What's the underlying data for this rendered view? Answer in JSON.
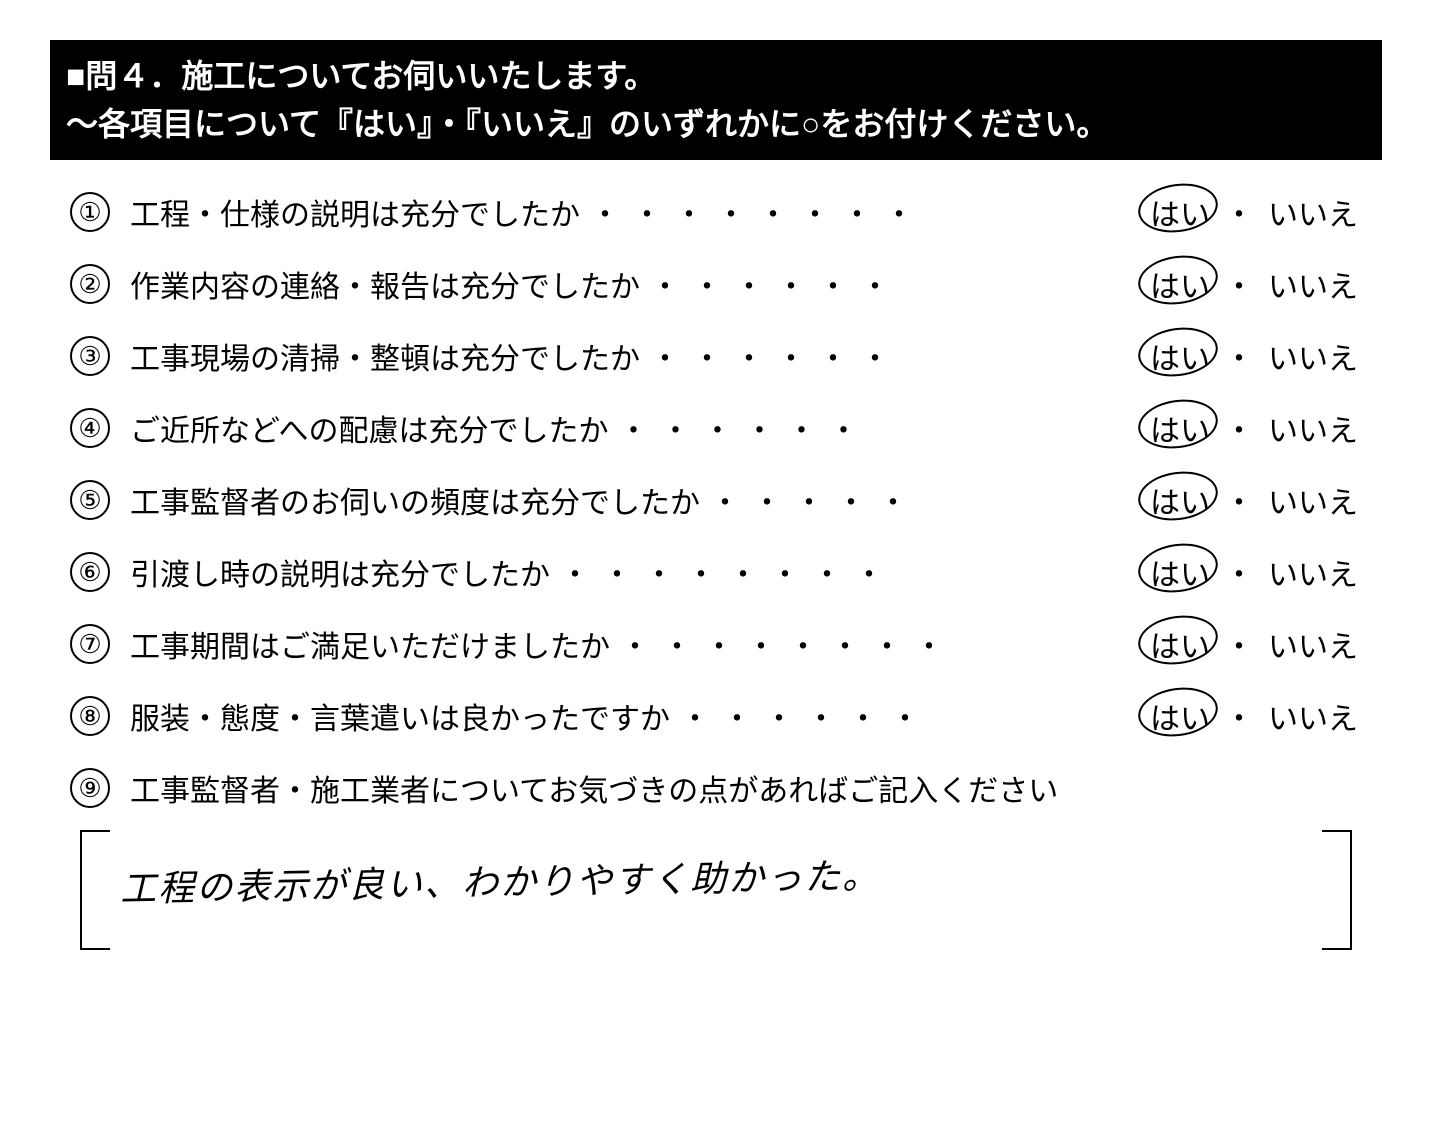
{
  "header": {
    "line1": "■問４．施工についてお伺いいたします。",
    "line2": "～各項目について『はい』・『いいえ』のいずれかに○をお付けください。"
  },
  "answerYes": "はい",
  "answerNo": "いいえ",
  "separator": "・",
  "questions": [
    {
      "num": "①",
      "text": "工程・仕様の説明は充分でしたか",
      "circled": "yes"
    },
    {
      "num": "②",
      "text": "作業内容の連絡・報告は充分でしたか",
      "circled": "yes"
    },
    {
      "num": "③",
      "text": "工事現場の清掃・整頓は充分でしたか",
      "circled": "yes"
    },
    {
      "num": "④",
      "text": "ご近所などへの配慮は充分でしたか",
      "circled": "yes"
    },
    {
      "num": "⑤",
      "text": "工事監督者のお伺いの頻度は充分でしたか",
      "circled": "yes"
    },
    {
      "num": "⑥",
      "text": "引渡し時の説明は充分でしたか",
      "circled": "yes"
    },
    {
      "num": "⑦",
      "text": "工事期間はご満足いただけましたか",
      "circled": "yes"
    },
    {
      "num": "⑧",
      "text": "服装・態度・言葉遣いは良かったですか",
      "circled": "yes"
    }
  ],
  "question9": {
    "num": "⑨",
    "text": "工事監督者・施工業者についてお気づきの点があればご記入ください"
  },
  "handwrittenComment": "工程の表示が良い、わかりやすく助かった。",
  "styling": {
    "headerBg": "#000000",
    "headerColor": "#ffffff",
    "textColor": "#000000",
    "bodyBg": "#ffffff",
    "headerFontSize": 32,
    "questionFontSize": 30,
    "numCircleSize": 40,
    "handwritingFontSize": 36
  }
}
